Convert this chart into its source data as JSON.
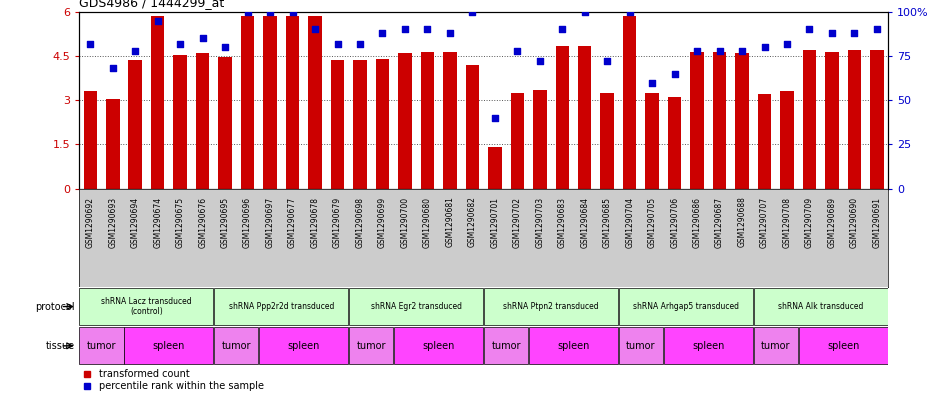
{
  "title": "GDS4986 / 1444299_at",
  "sample_ids": [
    "GSM1290692",
    "GSM1290693",
    "GSM1290694",
    "GSM1290674",
    "GSM1290675",
    "GSM1290676",
    "GSM1290695",
    "GSM1290696",
    "GSM1290697",
    "GSM1290677",
    "GSM1290678",
    "GSM1290679",
    "GSM1290698",
    "GSM1290699",
    "GSM1290700",
    "GSM1290680",
    "GSM1290681",
    "GSM1290682",
    "GSM1290701",
    "GSM1290702",
    "GSM1290703",
    "GSM1290683",
    "GSM1290684",
    "GSM1290685",
    "GSM1290704",
    "GSM1290705",
    "GSM1290706",
    "GSM1290686",
    "GSM1290687",
    "GSM1290688",
    "GSM1290707",
    "GSM1290708",
    "GSM1290709",
    "GSM1290689",
    "GSM1290690",
    "GSM1290691"
  ],
  "bar_values": [
    3.3,
    3.05,
    4.35,
    5.85,
    4.55,
    4.6,
    4.45,
    5.85,
    5.85,
    5.85,
    5.85,
    4.35,
    4.35,
    4.4,
    4.6,
    4.65,
    4.65,
    4.2,
    1.4,
    3.25,
    3.35,
    4.85,
    4.85,
    3.25,
    5.85,
    3.25,
    3.1,
    4.65,
    4.65,
    4.6,
    3.2,
    3.3,
    4.7,
    4.65,
    4.7,
    4.7
  ],
  "percentile_values": [
    82,
    68,
    78,
    95,
    82,
    85,
    80,
    100,
    100,
    100,
    90,
    82,
    82,
    88,
    90,
    90,
    88,
    100,
    40,
    78,
    72,
    90,
    100,
    72,
    100,
    60,
    65,
    78,
    78,
    78,
    80,
    82,
    90,
    88,
    88,
    90
  ],
  "bar_color": "#cc0000",
  "percentile_color": "#0000cc",
  "ylim_left": [
    0,
    6
  ],
  "ylim_right": [
    0,
    100
  ],
  "yticks_left": [
    0,
    1.5,
    3.0,
    4.5,
    6.0
  ],
  "ytick_labels_left": [
    "0",
    "1.5",
    "3",
    "4.5",
    "6"
  ],
  "yticks_right": [
    0,
    25,
    50,
    75,
    100
  ],
  "ytick_labels_right": [
    "0",
    "25",
    "50",
    "75",
    "100%"
  ],
  "protocol_groups": [
    {
      "label": "shRNA Lacz transduced\n(control)",
      "start": 0,
      "end": 5,
      "color": "#ccffcc"
    },
    {
      "label": "shRNA Ppp2r2d transduced",
      "start": 6,
      "end": 11,
      "color": "#ccffcc"
    },
    {
      "label": "shRNA Egr2 transduced",
      "start": 12,
      "end": 17,
      "color": "#ccffcc"
    },
    {
      "label": "shRNA Ptpn2 transduced",
      "start": 18,
      "end": 23,
      "color": "#ccffcc"
    },
    {
      "label": "shRNA Arhgap5 transduced",
      "start": 24,
      "end": 29,
      "color": "#ccffcc"
    },
    {
      "label": "shRNA Alk transduced",
      "start": 30,
      "end": 35,
      "color": "#ccffcc"
    }
  ],
  "tissue_groups": [
    {
      "label": "tumor",
      "start": 0,
      "end": 1
    },
    {
      "label": "spleen",
      "start": 2,
      "end": 5
    },
    {
      "label": "tumor",
      "start": 6,
      "end": 7
    },
    {
      "label": "spleen",
      "start": 8,
      "end": 11
    },
    {
      "label": "tumor",
      "start": 12,
      "end": 13
    },
    {
      "label": "spleen",
      "start": 14,
      "end": 17
    },
    {
      "label": "tumor",
      "start": 18,
      "end": 19
    },
    {
      "label": "spleen",
      "start": 20,
      "end": 23
    },
    {
      "label": "tumor",
      "start": 24,
      "end": 25
    },
    {
      "label": "spleen",
      "start": 26,
      "end": 29
    },
    {
      "label": "tumor",
      "start": 30,
      "end": 31
    },
    {
      "label": "spleen",
      "start": 32,
      "end": 35
    }
  ],
  "tumor_color": "#ee82ee",
  "spleen_color": "#ff44ff",
  "legend_items": [
    {
      "label": "transformed count",
      "color": "#cc0000"
    },
    {
      "label": "percentile rank within the sample",
      "color": "#0000cc"
    }
  ],
  "background_color": "#ffffff",
  "grid_color": "#555555",
  "xticklabel_bg": "#cccccc"
}
